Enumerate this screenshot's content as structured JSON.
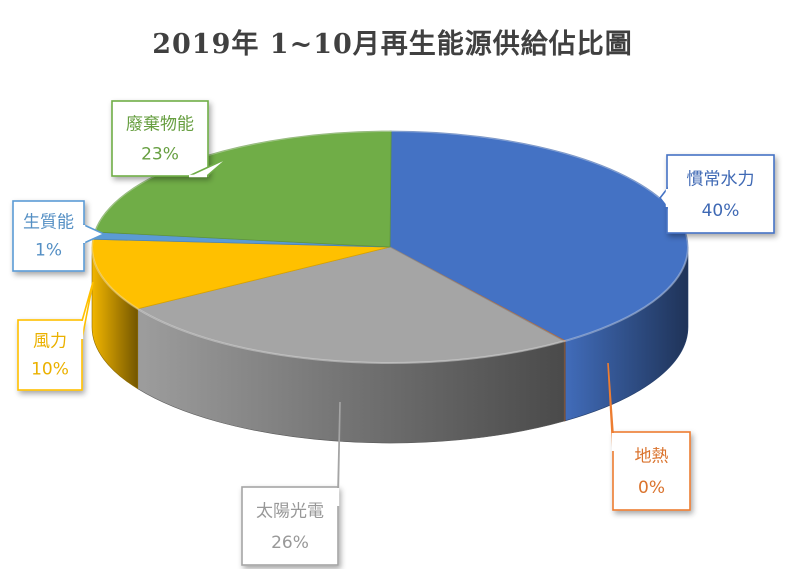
{
  "chart_data": {
    "type": "pie",
    "title": "2019年 1~10月再生能源供給佔比圖",
    "categories": [
      "慣常水力",
      "地熱",
      "太陽光電",
      "風力",
      "生質能",
      "廢棄物能"
    ],
    "values": [
      40,
      0,
      26,
      10,
      1,
      23
    ],
    "value_labels": [
      "40%",
      "0%",
      "26%",
      "10%",
      "1%",
      "23%"
    ],
    "colors": [
      "#4472C4",
      "#ED7D31",
      "#A5A5A5",
      "#FFC000",
      "#5B9BD5",
      "#70AD47"
    ],
    "legend": "none",
    "style": "3d-pie-with-callouts"
  }
}
